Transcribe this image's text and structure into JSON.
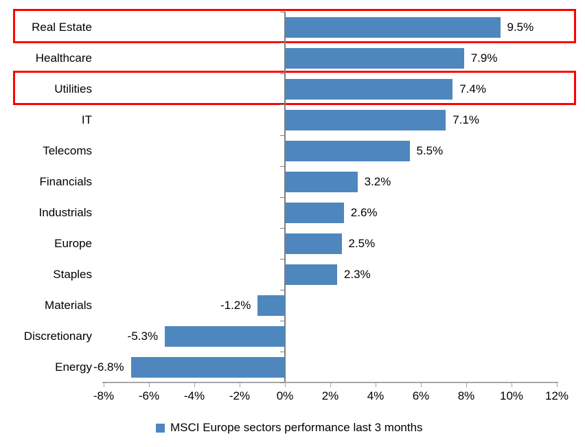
{
  "chart_data": {
    "type": "bar",
    "orientation": "horizontal",
    "title": "",
    "categories": [
      "Real Estate",
      "Healthcare",
      "Utilities",
      "IT",
      "Telecoms",
      "Financials",
      "Industrials",
      "Europe",
      "Staples",
      "Materials",
      "Discretionary",
      "Energy"
    ],
    "values": [
      9.5,
      7.9,
      7.4,
      7.1,
      5.5,
      3.2,
      2.6,
      2.5,
      2.3,
      -1.2,
      -5.3,
      -6.8
    ],
    "value_labels": [
      "9.5%",
      "7.9%",
      "7.4%",
      "7.1%",
      "5.5%",
      "3.2%",
      "2.6%",
      "2.5%",
      "2.3%",
      "-1.2%",
      "-5.3%",
      "-6.8%"
    ],
    "xlim": [
      -8,
      12
    ],
    "x_tick_values": [
      -8,
      -6,
      -4,
      -2,
      0,
      2,
      4,
      6,
      8,
      10,
      12
    ],
    "x_tick_labels": [
      "-8%",
      "-6%",
      "-4%",
      "-2%",
      "0%",
      "2%",
      "4%",
      "6%",
      "8%",
      "10%",
      "12%"
    ],
    "grid": false,
    "legend_position": "bottom",
    "legend_label": "MSCI Europe sectors performance last 3 months",
    "bar_color": "#4e87be",
    "zero_axis_color": "#7f7f7f",
    "x_axis_color": "#a6a6a6",
    "highlight_color": "#ff0000",
    "highlighted_categories": [
      "Real Estate",
      "Utilities"
    ]
  }
}
